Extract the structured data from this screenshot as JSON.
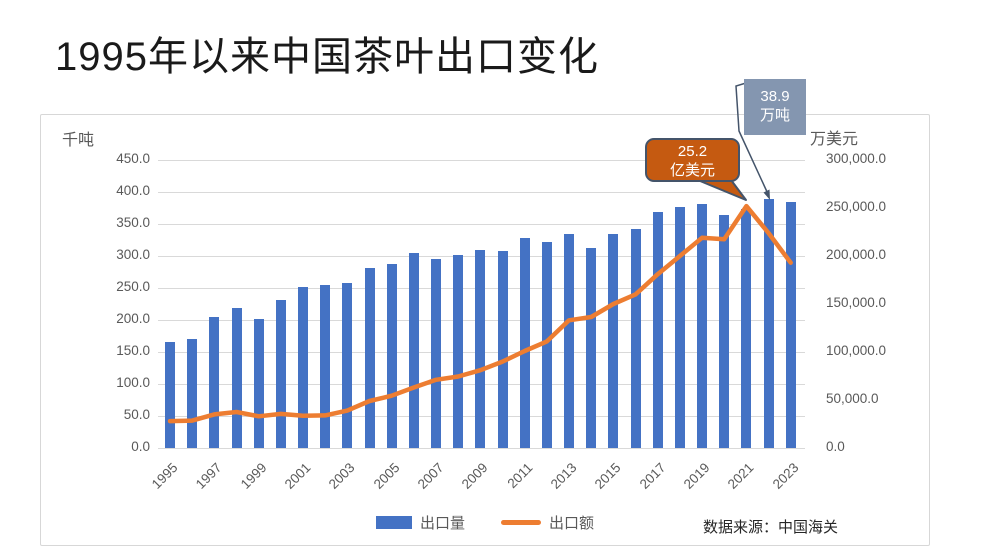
{
  "title": "1995年以来中国茶叶出口变化",
  "chart_data": {
    "type": "combo",
    "categories": [
      "1995",
      "1996",
      "1997",
      "1998",
      "1999",
      "2000",
      "2001",
      "2002",
      "2003",
      "2004",
      "2005",
      "2006",
      "2007",
      "2008",
      "2009",
      "2010",
      "2011",
      "2012",
      "2013",
      "2014",
      "2015",
      "2016",
      "2017",
      "2018",
      "2019",
      "2020",
      "2021",
      "2022",
      "2023"
    ],
    "series": [
      {
        "name": "出口量",
        "chart_type": "bar",
        "y_axis": "left",
        "unit": "千吨",
        "color": "#4472C4",
        "values": [
          166,
          170,
          204,
          218,
          201,
          231,
          252,
          254,
          258,
          281,
          288,
          304,
          296,
          302,
          309,
          308,
          328,
          322,
          334,
          312,
          335,
          342,
          368,
          377,
          381,
          364,
          373,
          389,
          384
        ]
      },
      {
        "name": "出口额",
        "chart_type": "line",
        "y_axis": "right",
        "unit": "万美元",
        "color": "#ED7D31",
        "values": [
          28000,
          28500,
          35000,
          37500,
          33000,
          35500,
          33500,
          34000,
          39000,
          49000,
          54500,
          63000,
          71000,
          74500,
          81000,
          90000,
          101000,
          111000,
          133000,
          136500,
          150000,
          160000,
          181000,
          200000,
          219000,
          217500,
          252000,
          224000,
          193000
        ]
      }
    ],
    "left_axis": {
      "title": "千吨",
      "min": 0,
      "max": 450,
      "step": 50,
      "tick_labels": [
        "450.0",
        "400.0",
        "350.0",
        "300.0",
        "250.0",
        "200.0",
        "150.0",
        "100.0",
        "50.0",
        "0.0"
      ]
    },
    "right_axis": {
      "title": "万美元",
      "min": 0,
      "max": 300000,
      "step": 50000,
      "tick_labels": [
        "300,000.0",
        "250,000.0",
        "200,000.0",
        "150,000.0",
        "100,000.0",
        "50,000.0",
        "0.0"
      ]
    },
    "x_tick_labels": [
      "1995",
      "1997",
      "1999",
      "2001",
      "2003",
      "2005",
      "2007",
      "2009",
      "2011",
      "2013",
      "2015",
      "2017",
      "2019",
      "2021",
      "2023"
    ],
    "grid": "horizontal-only",
    "legend": {
      "position": "bottom",
      "entries": [
        "出口量",
        "出口额"
      ]
    },
    "annotations": [
      {
        "text_lines": [
          "38.9",
          "万吨"
        ],
        "target_year": "2022",
        "target_series": "出口量",
        "box_color": "#8496B0",
        "leader_color": "#44546A"
      },
      {
        "text_lines": [
          "25.2",
          "亿美元"
        ],
        "target_year": "2021",
        "target_series": "出口额",
        "box_color": "#C55A11",
        "border_color": "#44546A"
      }
    ],
    "source": "数据来源：中国海关"
  }
}
